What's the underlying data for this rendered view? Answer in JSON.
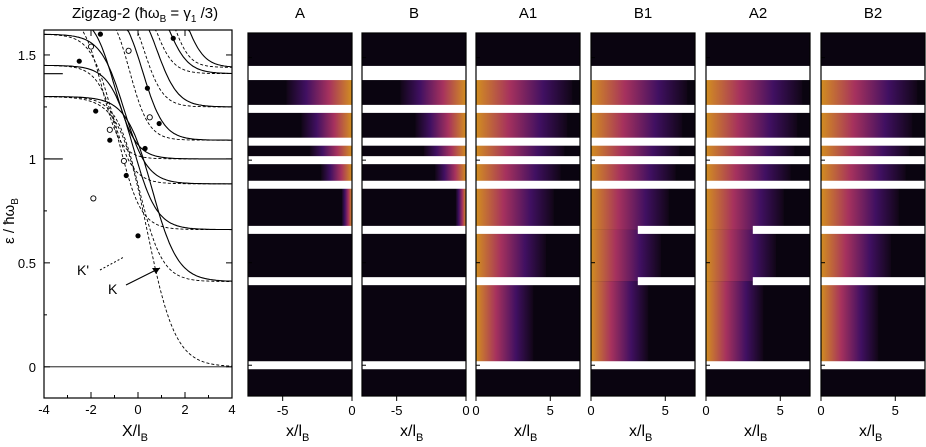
{
  "figure": {
    "left_panel": {
      "title": "Zigzag-2 (ħω",
      "title_sub1": "B",
      "title_mid": " = γ",
      "title_sub2": "1",
      "title_end": " /3)",
      "ylabel": "ε / ħω",
      "ylabel_sub": "B",
      "xlabel": "X/l",
      "xlabel_sub": "B",
      "x_ticks": [
        "-4",
        "-2",
        "0",
        "2",
        "4"
      ],
      "y_ticks": [
        "0",
        "0.5",
        "1",
        "1.5"
      ],
      "annotations": {
        "k_prime": "K'",
        "k": "K"
      }
    },
    "map_panels": [
      {
        "title": "A"
      },
      {
        "title": "B"
      },
      {
        "title": "A1"
      },
      {
        "title": "B1"
      },
      {
        "title": "A2"
      },
      {
        "title": "B2"
      }
    ],
    "map_xlabel": "x/l",
    "map_xlabel_sub": "B",
    "left_map_ticks": [
      "-5",
      "0"
    ],
    "right_map_ticks": [
      "0",
      "5"
    ],
    "colors": {
      "map_background": "#0a0410",
      "band": "#ffffff",
      "low": "#3b0b5a",
      "mid": "#b3306e",
      "high": "#f3a02a"
    }
  },
  "chart_data": [
    {
      "type": "line",
      "title": "Zigzag-2 (ħωB = γ1 /3)",
      "xlabel": "X/lB",
      "ylabel": "ε / ħωB",
      "xlim": [
        -4,
        4
      ],
      "ylim": [
        -0.15,
        1.62
      ],
      "plateau_levels": [
        0,
        0.41,
        0.66,
        0.88,
        1.0,
        1.09,
        1.25,
        1.41,
        1.44
      ],
      "annotations": [
        "K'",
        "K"
      ]
    },
    {
      "type": "heatmap",
      "panels": [
        "A",
        "B",
        "A1",
        "B1",
        "A2",
        "B2"
      ],
      "xlabel": "x/lB",
      "xlim_left_panels": [
        -7.5,
        0
      ],
      "xlim_right_panels": [
        0,
        7
      ],
      "ylim": [
        -0.15,
        1.62
      ],
      "bright_levels": [
        0,
        0.41,
        0.66,
        0.88,
        1.0,
        1.09,
        1.25,
        1.41,
        1.44
      ]
    }
  ]
}
